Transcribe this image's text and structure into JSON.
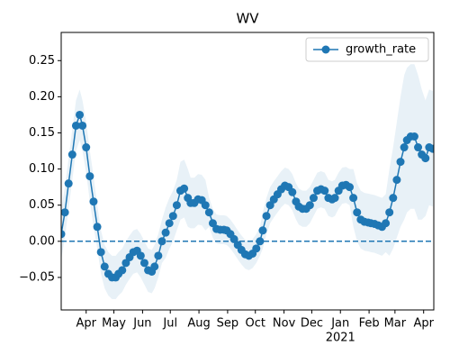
{
  "chart_data": {
    "type": "line",
    "title": "WV",
    "x": [
      4,
      8,
      12,
      16,
      20,
      24,
      27,
      31,
      35,
      39,
      43,
      47,
      51,
      55,
      59,
      63,
      66,
      70,
      74,
      78,
      82,
      86,
      90,
      94,
      98,
      102,
      105,
      109,
      113,
      117,
      121,
      125,
      129,
      133,
      137,
      141,
      144,
      148,
      152,
      156,
      160,
      164,
      168,
      172,
      176,
      180,
      183,
      187,
      191,
      195,
      199,
      203,
      207,
      211,
      215,
      219,
      222,
      226,
      230,
      234,
      238,
      242,
      246,
      250,
      254,
      258,
      261,
      265,
      269,
      273,
      277,
      281,
      285,
      289,
      293,
      297,
      300,
      304,
      308,
      312,
      316,
      320,
      324,
      328,
      332,
      336,
      339,
      343,
      347,
      351,
      355,
      359,
      363,
      367,
      371,
      375,
      378,
      382,
      386,
      390,
      394,
      398,
      402,
      406
    ],
    "series": [
      {
        "name": "growth_rate",
        "color": "#1f77b4",
        "values": [
          0.01,
          0.04,
          0.08,
          0.12,
          0.16,
          0.175,
          0.16,
          0.13,
          0.09,
          0.055,
          0.02,
          -0.015,
          -0.035,
          -0.045,
          -0.05,
          -0.05,
          -0.045,
          -0.04,
          -0.03,
          -0.022,
          -0.015,
          -0.013,
          -0.02,
          -0.03,
          -0.04,
          -0.042,
          -0.035,
          -0.02,
          0.0,
          0.012,
          0.025,
          0.035,
          0.05,
          0.07,
          0.073,
          0.06,
          0.053,
          0.053,
          0.058,
          0.057,
          0.05,
          0.04,
          0.025,
          0.017,
          0.016,
          0.016,
          0.015,
          0.01,
          0.003,
          -0.005,
          -0.012,
          -0.018,
          -0.02,
          -0.017,
          -0.01,
          0.0,
          0.015,
          0.035,
          0.05,
          0.058,
          0.065,
          0.072,
          0.077,
          0.075,
          0.068,
          0.055,
          0.048,
          0.045,
          0.045,
          0.05,
          0.06,
          0.07,
          0.072,
          0.07,
          0.06,
          0.058,
          0.06,
          0.07,
          0.077,
          0.078,
          0.075,
          0.06,
          0.04,
          0.03,
          0.027,
          0.026,
          0.025,
          0.024,
          0.022,
          0.02,
          0.025,
          0.04,
          0.06,
          0.085,
          0.11,
          0.13,
          0.14,
          0.145,
          0.145,
          0.13,
          0.12,
          0.115,
          0.13,
          0.128
        ],
        "errors": [
          0.035,
          0.035,
          0.035,
          0.035,
          0.035,
          0.035,
          0.035,
          0.035,
          0.035,
          0.035,
          0.03,
          0.03,
          0.03,
          0.03,
          0.03,
          0.03,
          0.03,
          0.03,
          0.03,
          0.03,
          0.03,
          0.03,
          0.03,
          0.03,
          0.03,
          0.03,
          0.03,
          0.03,
          0.03,
          0.035,
          0.035,
          0.035,
          0.035,
          0.04,
          0.04,
          0.04,
          0.035,
          0.035,
          0.035,
          0.035,
          0.035,
          0.02,
          0.02,
          0.02,
          0.02,
          0.02,
          0.02,
          0.02,
          0.02,
          0.02,
          0.02,
          0.02,
          0.02,
          0.02,
          0.02,
          0.02,
          0.025,
          0.025,
          0.025,
          0.025,
          0.025,
          0.025,
          0.025,
          0.025,
          0.025,
          0.025,
          0.025,
          0.025,
          0.025,
          0.025,
          0.025,
          0.025,
          0.025,
          0.025,
          0.025,
          0.025,
          0.025,
          0.025,
          0.025,
          0.025,
          0.025,
          0.04,
          0.04,
          0.04,
          0.04,
          0.04,
          0.04,
          0.04,
          0.04,
          0.04,
          0.04,
          0.06,
          0.07,
          0.08,
          0.09,
          0.1,
          0.1,
          0.1,
          0.1,
          0.1,
          0.09,
          0.08,
          0.08,
          0.08
        ]
      }
    ],
    "hline": 0,
    "xlim": [
      4,
      407
    ],
    "xticks": [
      {
        "value": 31,
        "label": "Apr"
      },
      {
        "value": 61,
        "label": "May"
      },
      {
        "value": 92,
        "label": "Jun"
      },
      {
        "value": 122,
        "label": "Jul"
      },
      {
        "value": 153,
        "label": "Aug"
      },
      {
        "value": 184,
        "label": "Sep"
      },
      {
        "value": 214,
        "label": "Oct"
      },
      {
        "value": 245,
        "label": "Nov"
      },
      {
        "value": 275,
        "label": "Dec"
      },
      {
        "value": 306,
        "label": "Jan",
        "sublabel": "2021"
      },
      {
        "value": 337,
        "label": "Feb"
      },
      {
        "value": 365,
        "label": "Mar"
      },
      {
        "value": 396,
        "label": "Apr"
      }
    ],
    "ylim": [
      -0.095,
      0.289
    ],
    "yticks": [
      {
        "value": -0.05,
        "label": "−0.05"
      },
      {
        "value": 0,
        "label": "0.00"
      },
      {
        "value": 0.05,
        "label": "0.05"
      },
      {
        "value": 0.1,
        "label": "0.10"
      },
      {
        "value": 0.15,
        "label": "0.15"
      },
      {
        "value": 0.2,
        "label": "0.20"
      },
      {
        "value": 0.25,
        "label": "0.25"
      }
    ],
    "legend": "upper right",
    "grid": false
  }
}
